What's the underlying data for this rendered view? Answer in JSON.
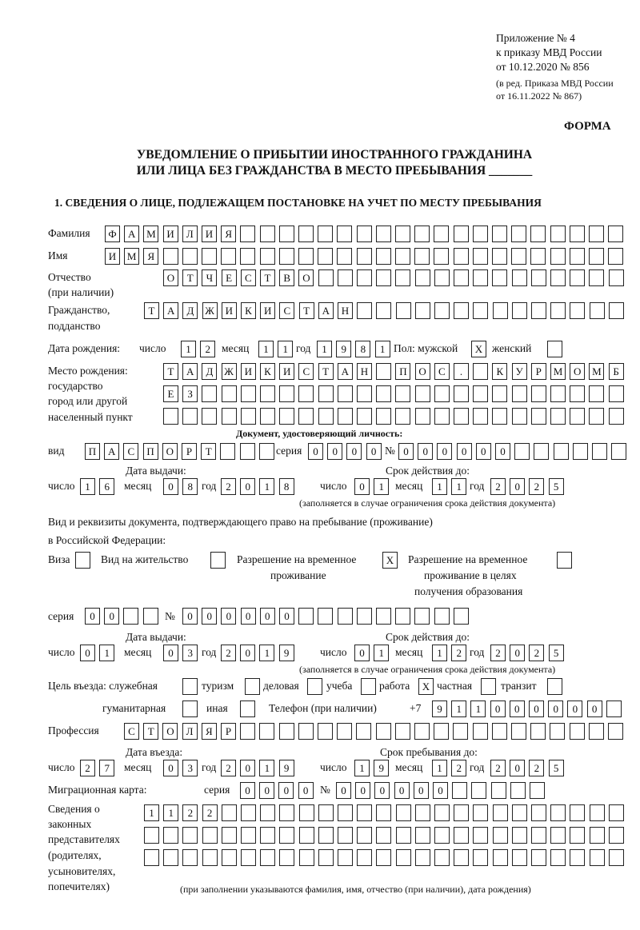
{
  "header": {
    "appendix": "Приложение № 4",
    "order_line1": "к приказу МВД России",
    "order_line2": "от 10.12.2020 № 856",
    "edition_line1": "(в ред. Приказа МВД России",
    "edition_line2": "от 16.11.2022 № 867)",
    "form_label": "ФОРМА"
  },
  "title": {
    "line1": "УВЕДОМЛЕНИЕ О ПРИБЫТИИ ИНОСТРАННОГО ГРАЖДАНИНА",
    "line2": "ИЛИ ЛИЦА БЕЗ ГРАЖДАНСТВА В МЕСТО ПРЕБЫВАНИЯ _______"
  },
  "section1": {
    "heading": "1. СВЕДЕНИЯ О ЛИЦЕ, ПОДЛЕЖАЩЕМ ПОСТАНОВКЕ НА УЧЕТ ПО МЕСТУ ПРЕБЫВАНИЯ"
  },
  "labels": {
    "surname": "Фамилия",
    "name": "Имя",
    "patronymic1": "Отчество",
    "patronymic2": "(при наличии)",
    "citizenship1": "Гражданство,",
    "citizenship2": "подданство",
    "dob": "Дата рождения:",
    "day": "число",
    "month": "месяц",
    "year": "год",
    "sex": "Пол: мужской",
    "female": "женский",
    "birthplace1": "Место рождения:",
    "birthplace2": "государство",
    "birthplace3": "город или другой",
    "birthplace4": "населенный пункт",
    "id_doc": "Документ, удостоверяющий личность:",
    "doc_type": "вид",
    "series": "серия",
    "number": "№",
    "issue_date": "Дата выдачи:",
    "valid_until": "Срок действия до:",
    "valid_note": "(заполняется в случае ограничения срока действия документа)",
    "permit1": "Вид и реквизиты документа, подтверждающего право на пребывание (проживание)",
    "permit2": "в Российской Федерации:",
    "visa": "Виза",
    "residence": "Вид на жительство",
    "temp1": "Разрешение на временное",
    "temp2": "проживание",
    "edu1": "Разрешение на временное",
    "edu2": "проживание в целях",
    "edu3": "получения образования",
    "purpose": "Цель въезда: служебная",
    "tourism": "туризм",
    "business": "деловая",
    "study": "учеба",
    "work": "работа",
    "private": "частная",
    "transit": "транзит",
    "humanitarian": "гуманитарная",
    "other": "иная",
    "phone": "Телефон (при наличии)",
    "phone_prefix": "+7",
    "profession": "Профессия",
    "entry_date": "Дата въезда:",
    "stay_until": "Срок пребывания до:",
    "migration_card": "Миграционная карта:",
    "reps1": "Сведения о",
    "reps2": "законных",
    "reps3": "представителях",
    "reps4": "(родителях,",
    "reps5": "усыновителях,",
    "reps6": "попечителях)",
    "reps_note": "(при заполнении указываются фамилия, имя, отчество (при наличии), дата рождения)"
  },
  "fields": {
    "surname": [
      "Ф",
      "А",
      "М",
      "И",
      "Л",
      "И",
      "Я",
      "",
      "",
      "",
      "",
      "",
      "",
      "",
      "",
      "",
      "",
      "",
      "",
      "",
      "",
      "",
      "",
      "",
      "",
      "",
      ""
    ],
    "name": [
      "И",
      "М",
      "Я",
      "",
      "",
      "",
      "",
      "",
      "",
      "",
      "",
      "",
      "",
      "",
      "",
      "",
      "",
      "",
      "",
      "",
      "",
      "",
      "",
      "",
      "",
      "",
      ""
    ],
    "patronymic": [
      "О",
      "Т",
      "Ч",
      "Е",
      "С",
      "Т",
      "В",
      "О",
      "",
      "",
      "",
      "",
      "",
      "",
      "",
      "",
      "",
      "",
      "",
      "",
      "",
      "",
      "",
      ""
    ],
    "citizenship": [
      "Т",
      "А",
      "Д",
      "Ж",
      "И",
      "К",
      "И",
      "С",
      "Т",
      "А",
      "Н",
      "",
      "",
      "",
      "",
      "",
      "",
      "",
      "",
      "",
      "",
      "",
      "",
      "",
      ""
    ],
    "dob_day": [
      "1",
      "2"
    ],
    "dob_month": [
      "1",
      "1"
    ],
    "dob_year": [
      "1",
      "9",
      "8",
      "1"
    ],
    "sex_male": [
      "X"
    ],
    "sex_female": [
      ""
    ],
    "birthplace_1": [
      "Т",
      "А",
      "Д",
      "Ж",
      "И",
      "К",
      "И",
      "С",
      "Т",
      "А",
      "Н",
      "",
      "П",
      "О",
      "С",
      ".",
      "",
      "К",
      "У",
      "Р",
      "М",
      "О",
      "М",
      "Б"
    ],
    "birthplace_2": [
      "Е",
      "З",
      "",
      "",
      "",
      "",
      "",
      "",
      "",
      "",
      "",
      "",
      "",
      "",
      "",
      "",
      "",
      "",
      "",
      "",
      "",
      "",
      "",
      ""
    ],
    "birthplace_3": [
      "",
      "",
      "",
      "",
      "",
      "",
      "",
      "",
      "",
      "",
      "",
      "",
      "",
      "",
      "",
      "",
      "",
      "",
      "",
      "",
      "",
      "",
      "",
      ""
    ],
    "doc_type": [
      "П",
      "А",
      "С",
      "П",
      "О",
      "Р",
      "Т",
      "",
      "",
      ""
    ],
    "doc_series": [
      "0",
      "0",
      "0",
      "0"
    ],
    "doc_number": [
      "0",
      "0",
      "0",
      "0",
      "0",
      "0",
      "",
      "",
      "",
      "",
      "",
      ""
    ],
    "doc_issue_day": [
      "1",
      "6"
    ],
    "doc_issue_month": [
      "0",
      "8"
    ],
    "doc_issue_year": [
      "2",
      "0",
      "1",
      "8"
    ],
    "doc_valid_day": [
      "0",
      "1"
    ],
    "doc_valid_month": [
      "1",
      "1"
    ],
    "doc_valid_year": [
      "2",
      "0",
      "2",
      "5"
    ],
    "permit_visa": [
      ""
    ],
    "permit_residence": [
      ""
    ],
    "permit_temp": [
      "X"
    ],
    "permit_edu": [
      ""
    ],
    "permit_series": [
      "0",
      "0",
      "",
      ""
    ],
    "permit_number": [
      "0",
      "0",
      "0",
      "0",
      "0",
      "0",
      "",
      "",
      "",
      "",
      "",
      "",
      "",
      "",
      ""
    ],
    "permit_issue_day": [
      "0",
      "1"
    ],
    "permit_issue_month": [
      "0",
      "3"
    ],
    "permit_issue_year": [
      "2",
      "0",
      "1",
      "9"
    ],
    "permit_valid_day": [
      "0",
      "1"
    ],
    "permit_valid_month": [
      "1",
      "2"
    ],
    "permit_valid_year": [
      "2",
      "0",
      "2",
      "5"
    ],
    "purpose_official": [
      ""
    ],
    "purpose_tourism": [
      ""
    ],
    "purpose_business": [
      ""
    ],
    "purpose_study": [
      ""
    ],
    "purpose_work": [
      "X"
    ],
    "purpose_private": [
      ""
    ],
    "purpose_transit": [
      ""
    ],
    "purpose_humanitarian": [
      ""
    ],
    "purpose_other": [
      ""
    ],
    "phone": [
      "9",
      "1",
      "1",
      "0",
      "0",
      "0",
      "0",
      "0",
      "0",
      ""
    ],
    "profession": [
      "С",
      "Т",
      "О",
      "Л",
      "Я",
      "Р",
      "",
      "",
      "",
      "",
      "",
      "",
      "",
      "",
      "",
      "",
      "",
      "",
      "",
      "",
      "",
      "",
      "",
      "",
      "",
      ""
    ],
    "entry_day": [
      "2",
      "7"
    ],
    "entry_month": [
      "0",
      "3"
    ],
    "entry_year": [
      "2",
      "0",
      "1",
      "9"
    ],
    "stay_day": [
      "1",
      "9"
    ],
    "stay_month": [
      "1",
      "2"
    ],
    "stay_year": [
      "2",
      "0",
      "2",
      "5"
    ],
    "mig_series": [
      "0",
      "0",
      "0",
      "0"
    ],
    "mig_number": [
      "0",
      "0",
      "0",
      "0",
      "0",
      "0",
      "",
      "",
      "",
      "",
      ""
    ],
    "reps_1": [
      "1",
      "1",
      "2",
      "2",
      "",
      "",
      "",
      "",
      "",
      "",
      "",
      "",
      "",
      "",
      "",
      "",
      "",
      "",
      "",
      "",
      "",
      "",
      "",
      "",
      ""
    ],
    "reps_2": [
      "",
      "",
      "",
      "",
      "",
      "",
      "",
      "",
      "",
      "",
      "",
      "",
      "",
      "",
      "",
      "",
      "",
      "",
      "",
      "",
      "",
      "",
      "",
      "",
      ""
    ],
    "reps_3": [
      "",
      "",
      "",
      "",
      "",
      "",
      "",
      "",
      "",
      "",
      "",
      "",
      "",
      "",
      "",
      "",
      "",
      "",
      "",
      "",
      "",
      "",
      "",
      "",
      ""
    ]
  }
}
